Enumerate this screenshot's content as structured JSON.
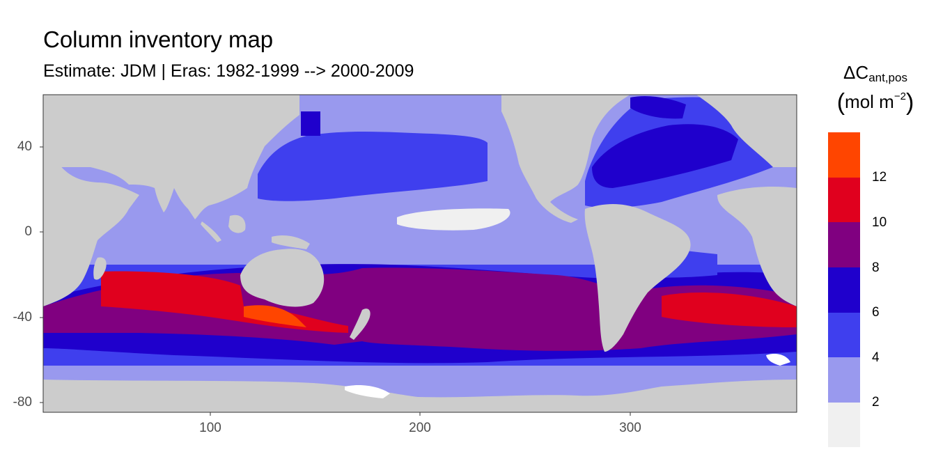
{
  "title": "Column inventory map",
  "subtitle": "Estimate: JDM  | Eras: 1982-1999 --> 2000-2009",
  "legend": {
    "title_main": "ΔC",
    "title_sub": "ant,pos",
    "unit_open": "(",
    "unit_main": "mol m",
    "unit_exp": "−2",
    "unit_close": ")",
    "bins": [
      {
        "range": "0-2",
        "color": "#f0f0f0"
      },
      {
        "range": "2-4",
        "color": "#9999ee"
      },
      {
        "range": "4-6",
        "color": "#3f3fee"
      },
      {
        "range": "6-8",
        "color": "#1f00cc"
      },
      {
        "range": "8-10",
        "color": "#800080"
      },
      {
        "range": "10-12",
        "color": "#e0001e"
      },
      {
        "range": "12-14",
        "color": "#ff4500"
      }
    ],
    "labels": [
      "2",
      "4",
      "6",
      "8",
      "10",
      "12"
    ]
  },
  "axes": {
    "x_ticks": [
      "100",
      "200",
      "300"
    ],
    "y_ticks": [
      "40",
      "0",
      "-40",
      "-80"
    ],
    "x_range": [
      20,
      380
    ],
    "y_range": [
      -85,
      65
    ]
  },
  "land_color": "#cccccc",
  "gap_color": "#ffffff"
}
